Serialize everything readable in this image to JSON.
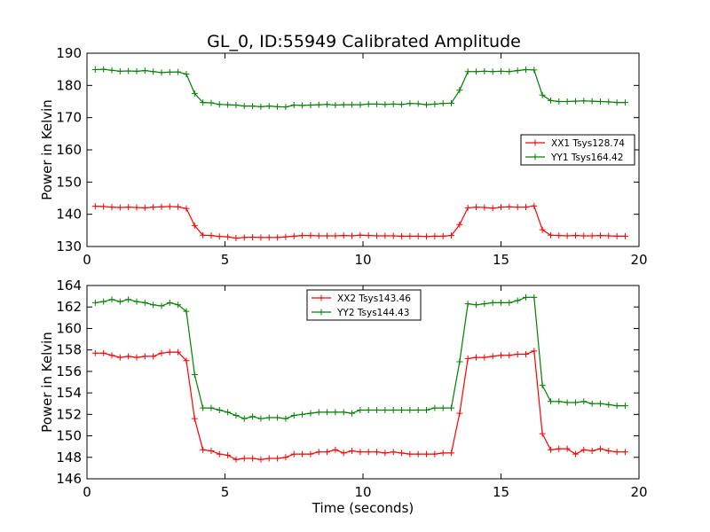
{
  "figure_title": "GL_0, ID:55949 Calibrated Amplitude",
  "colors": {
    "xx": "#ff0000",
    "yy": "#008000",
    "axes": "#000000",
    "background": "#ffffff"
  },
  "chart_data": [
    {
      "type": "line",
      "title": "GL_0, ID:55949 Calibrated Amplitude",
      "xlabel": "",
      "ylabel": "Power in Kelvin",
      "xlim": [
        0,
        20
      ],
      "ylim": [
        130,
        190
      ],
      "xticks": [
        0,
        5,
        10,
        15,
        20
      ],
      "yticks": [
        130,
        140,
        150,
        160,
        170,
        180,
        190
      ],
      "grid": false,
      "legend_position": "right",
      "x": [
        0.3,
        0.6,
        0.9,
        1.2,
        1.5,
        1.8,
        2.1,
        2.4,
        2.7,
        3.0,
        3.3,
        3.6,
        3.9,
        4.2,
        4.5,
        4.8,
        5.1,
        5.4,
        5.7,
        6.0,
        6.3,
        6.6,
        6.9,
        7.2,
        7.5,
        7.8,
        8.1,
        8.4,
        8.7,
        9.0,
        9.3,
        9.6,
        9.9,
        10.2,
        10.5,
        10.8,
        11.1,
        11.4,
        11.7,
        12.0,
        12.3,
        12.6,
        12.9,
        13.2,
        13.5,
        13.8,
        14.1,
        14.4,
        14.7,
        15.0,
        15.3,
        15.6,
        15.9,
        16.2,
        16.5,
        16.8,
        17.1,
        17.4,
        17.7,
        18.0,
        18.3,
        18.6,
        18.9,
        19.2,
        19.5
      ],
      "series": [
        {
          "name": "XX1 Tsys128.74",
          "color": "#ff0000",
          "values": [
            142.5,
            142.4,
            142.2,
            142.1,
            142.2,
            142.1,
            142.0,
            142.2,
            142.3,
            142.4,
            142.3,
            141.8,
            136.5,
            133.5,
            133.4,
            133.1,
            133.0,
            132.6,
            132.8,
            132.9,
            132.8,
            132.8,
            132.8,
            133.0,
            133.2,
            133.4,
            133.4,
            133.3,
            133.3,
            133.3,
            133.4,
            133.3,
            133.5,
            133.4,
            133.3,
            133.3,
            133.3,
            133.2,
            133.2,
            133.2,
            133.1,
            133.2,
            133.2,
            133.4,
            136.8,
            142.0,
            142.2,
            142.1,
            141.9,
            142.2,
            142.3,
            142.2,
            142.2,
            142.6,
            135.2,
            133.5,
            133.4,
            133.3,
            133.4,
            133.3,
            133.3,
            133.4,
            133.3,
            133.2,
            133.2
          ]
        },
        {
          "name": "YY1 Tsys164.42",
          "color": "#008000",
          "values": [
            184.9,
            185.0,
            184.7,
            184.4,
            184.5,
            184.4,
            184.6,
            184.3,
            184.0,
            184.1,
            184.2,
            183.5,
            177.5,
            174.7,
            174.6,
            174.1,
            174.0,
            173.9,
            173.6,
            173.6,
            173.4,
            173.6,
            173.4,
            173.3,
            173.9,
            173.8,
            173.9,
            174.0,
            174.1,
            173.9,
            174.0,
            174.0,
            174.0,
            174.2,
            174.2,
            174.1,
            174.2,
            174.1,
            174.4,
            174.3,
            174.0,
            174.2,
            174.4,
            174.5,
            178.5,
            184.3,
            184.3,
            184.4,
            184.3,
            184.4,
            184.3,
            184.6,
            184.9,
            184.8,
            177.0,
            175.3,
            175.0,
            175.0,
            175.1,
            175.2,
            175.1,
            175.0,
            174.9,
            174.7,
            174.7
          ]
        }
      ]
    },
    {
      "type": "line",
      "title": "",
      "xlabel": "Time (seconds)",
      "ylabel": "Power in Kelvin",
      "xlim": [
        0,
        20
      ],
      "ylim": [
        146,
        164
      ],
      "xticks": [
        0,
        5,
        10,
        15,
        20
      ],
      "yticks": [
        146,
        148,
        150,
        152,
        154,
        156,
        158,
        160,
        162,
        164
      ],
      "grid": false,
      "legend_position": "top-center",
      "x": [
        0.3,
        0.6,
        0.9,
        1.2,
        1.5,
        1.8,
        2.1,
        2.4,
        2.7,
        3.0,
        3.3,
        3.6,
        3.9,
        4.2,
        4.5,
        4.8,
        5.1,
        5.4,
        5.7,
        6.0,
        6.3,
        6.6,
        6.9,
        7.2,
        7.5,
        7.8,
        8.1,
        8.4,
        8.7,
        9.0,
        9.3,
        9.6,
        9.9,
        10.2,
        10.5,
        10.8,
        11.1,
        11.4,
        11.7,
        12.0,
        12.3,
        12.6,
        12.9,
        13.2,
        13.5,
        13.8,
        14.1,
        14.4,
        14.7,
        15.0,
        15.3,
        15.6,
        15.9,
        16.2,
        16.5,
        16.8,
        17.1,
        17.4,
        17.7,
        18.0,
        18.3,
        18.6,
        18.9,
        19.2,
        19.5
      ],
      "series": [
        {
          "name": "XX2 Tsys143.46",
          "color": "#ff0000",
          "values": [
            157.7,
            157.7,
            157.5,
            157.3,
            157.4,
            157.3,
            157.4,
            157.4,
            157.7,
            157.8,
            157.8,
            157.0,
            151.6,
            148.7,
            148.6,
            148.3,
            148.2,
            147.8,
            147.9,
            147.9,
            147.8,
            147.9,
            147.9,
            148.0,
            148.3,
            148.3,
            148.3,
            148.5,
            148.5,
            148.7,
            148.4,
            148.6,
            148.5,
            148.5,
            148.5,
            148.4,
            148.5,
            148.4,
            148.3,
            148.3,
            148.3,
            148.3,
            148.4,
            148.4,
            152.1,
            157.2,
            157.3,
            157.3,
            157.4,
            157.5,
            157.5,
            157.6,
            157.6,
            157.9,
            150.2,
            148.7,
            148.8,
            148.8,
            148.3,
            148.7,
            148.6,
            148.8,
            148.6,
            148.5,
            148.5
          ]
        },
        {
          "name": "YY2 Tsys144.43",
          "color": "#008000",
          "values": [
            162.4,
            162.5,
            162.7,
            162.5,
            162.7,
            162.5,
            162.4,
            162.2,
            162.1,
            162.4,
            162.2,
            161.6,
            155.7,
            152.6,
            152.6,
            152.4,
            152.2,
            151.9,
            151.6,
            151.8,
            151.6,
            151.7,
            151.7,
            151.6,
            151.9,
            152.0,
            152.1,
            152.2,
            152.2,
            152.2,
            152.2,
            152.1,
            152.4,
            152.4,
            152.4,
            152.4,
            152.4,
            152.4,
            152.4,
            152.4,
            152.4,
            152.6,
            152.6,
            152.6,
            156.9,
            162.3,
            162.2,
            162.3,
            162.4,
            162.4,
            162.4,
            162.6,
            162.9,
            162.9,
            154.7,
            153.2,
            153.2,
            153.1,
            153.1,
            153.2,
            153.0,
            153.0,
            152.9,
            152.8,
            152.8
          ]
        }
      ]
    }
  ]
}
